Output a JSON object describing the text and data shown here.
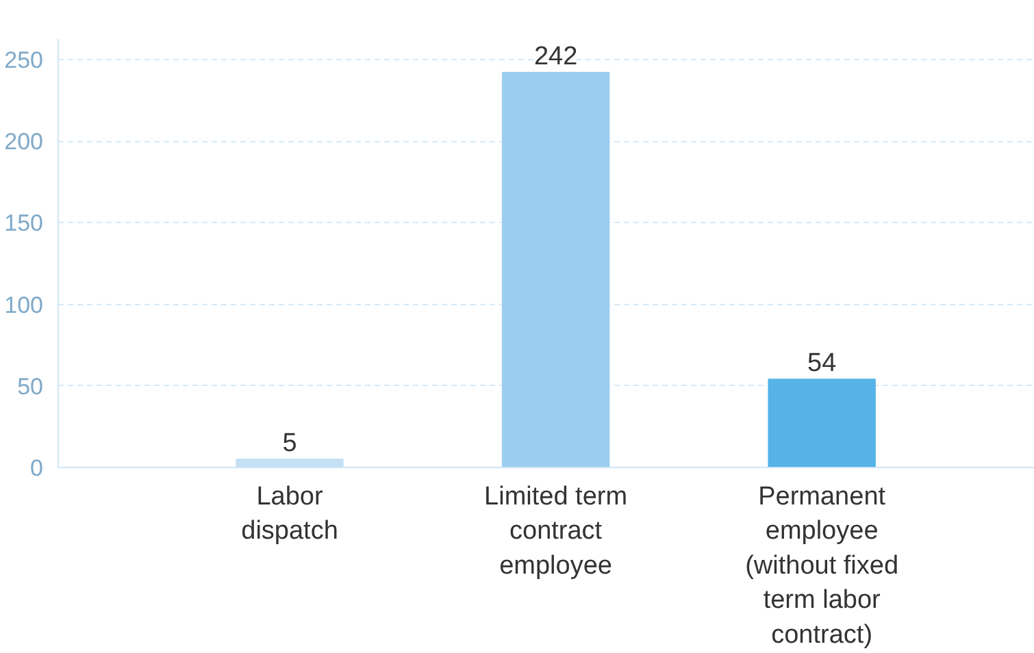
{
  "chart_data": {
    "type": "bar",
    "categories": [
      "Labor\ndispatch",
      "Limited term\ncontract\nemployee",
      "Permanent\nemployee\n(without fixed\nterm labor\ncontract)"
    ],
    "values": [
      5,
      242,
      54
    ],
    "colors": [
      "#c4e0f5",
      "#9bcdf0",
      "#55b3e8"
    ],
    "ylim": [
      0,
      250
    ],
    "yticks": [
      0,
      50,
      100,
      150,
      200,
      250
    ],
    "grid": "y",
    "data_labels": true
  }
}
